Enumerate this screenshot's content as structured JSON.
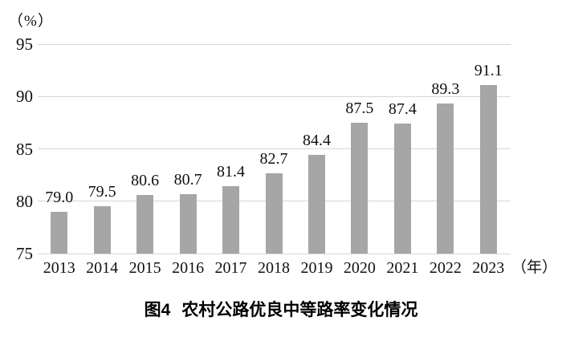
{
  "figure": {
    "y_unit_label": "（%）",
    "x_unit_label": "（年）",
    "caption_label": "图4",
    "caption_title": "农村公路优良中等路率变化情况"
  },
  "chart_data": {
    "type": "bar",
    "title": "图4 农村公路优良中等路率变化情况",
    "categories": [
      "2013",
      "2014",
      "2015",
      "2016",
      "2017",
      "2018",
      "2019",
      "2020",
      "2021",
      "2022",
      "2023"
    ],
    "values": [
      79.0,
      79.5,
      80.6,
      80.7,
      81.4,
      82.7,
      84.4,
      87.5,
      87.4,
      89.3,
      91.1
    ],
    "value_labels": [
      "79.0",
      "79.5",
      "80.6",
      "80.7",
      "81.4",
      "82.7",
      "84.4",
      "87.5",
      "87.4",
      "89.3",
      "91.1"
    ],
    "xlabel": "（年）",
    "ylabel": "（%）",
    "ylim": [
      75,
      95
    ],
    "yticks": [
      75,
      80,
      85,
      90,
      95
    ],
    "grid": true,
    "legend": false,
    "bar_color": "#a6a6a6",
    "gridline_color": "#d6d6d6",
    "text_color": "#111111"
  }
}
